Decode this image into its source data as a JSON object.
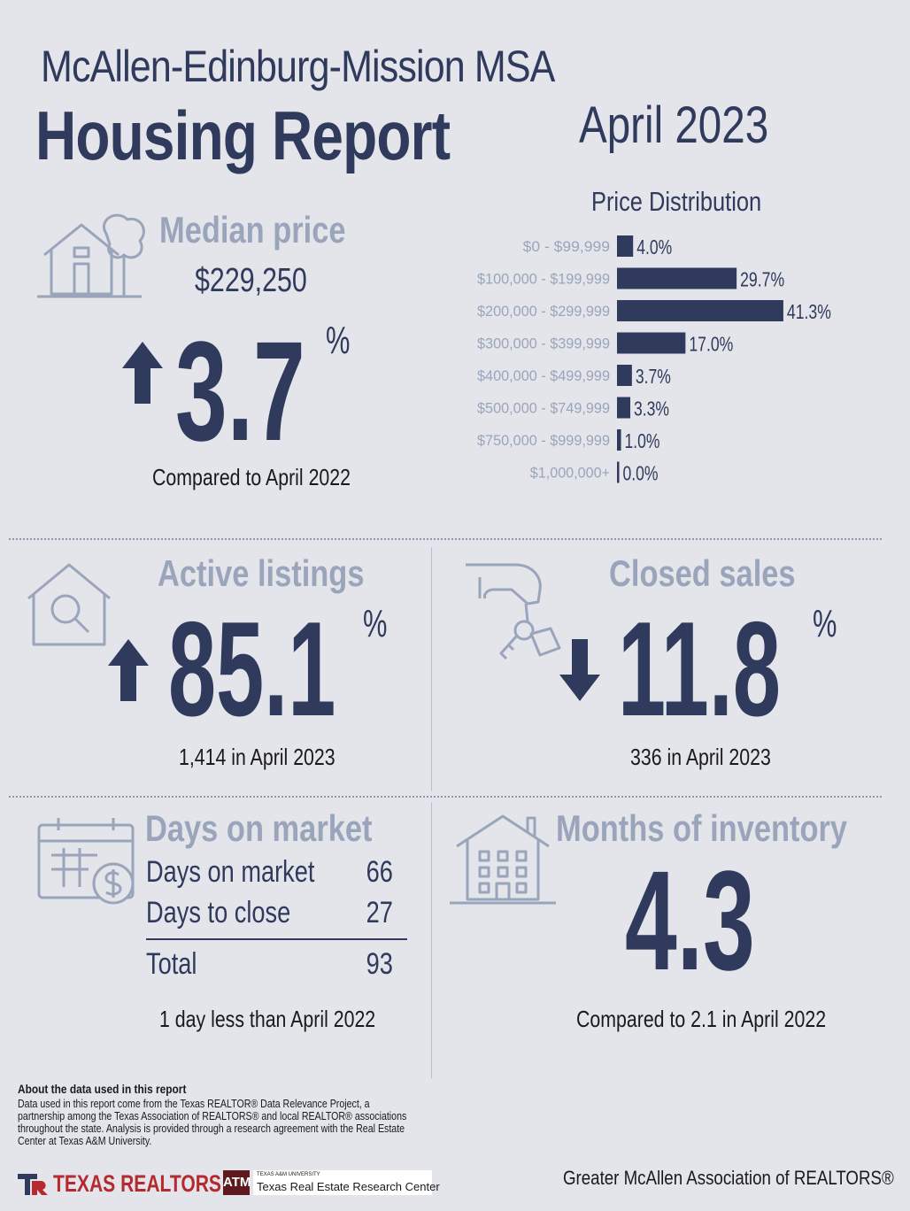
{
  "header": {
    "region": "McAllen-Edinburg-Mission MSA",
    "title": "Housing Report",
    "date": "April 2023"
  },
  "median_price": {
    "heading": "Median price",
    "value": "$229,250",
    "change": "3.7",
    "change_unit": "%",
    "direction": "up",
    "caption": "Compared to April 2022"
  },
  "price_distribution": {
    "title": "Price Distribution"
  },
  "active_listings": {
    "heading": "Active listings",
    "change": "85.1",
    "change_unit": "%",
    "direction": "up",
    "caption": "1,414 in April 2023"
  },
  "closed_sales": {
    "heading": "Closed sales",
    "change": "11.8",
    "change_unit": "%",
    "direction": "down",
    "caption": "336 in April 2023"
  },
  "days_on_market": {
    "heading": "Days on market",
    "rows": [
      {
        "label": "Days on market",
        "value": "66"
      },
      {
        "label": "Days to close",
        "value": "27"
      }
    ],
    "total_label": "Total",
    "total_value": "93",
    "caption": "1 day less than April 2022"
  },
  "months_inventory": {
    "heading": "Months of inventory",
    "value": "4.3",
    "caption": "Compared to 2.1 in April 2022"
  },
  "about": {
    "heading": "About the data used in this report",
    "body": "Data used in this report come from the Texas REALTOR® Data Relevance Project, a partnership among the Texas Association of REALTORS® and local REALTOR® associations throughout the state. Analysis is provided through a research agreement with the Real Estate Center at Texas A&M University."
  },
  "footer": {
    "logo_texas_realtors": "TEXAS REALTORS",
    "tamu_small": "TEXAS A&M UNIVERSITY",
    "tamu_center": "Texas Real Estate Research Center",
    "org": "Greater McAllen Association of REALTORS®"
  },
  "colors": {
    "background": "#e3e5ea",
    "navy": "#2f3a5c",
    "muted": "#9aa5bb",
    "brand_red": "#b42a2f"
  },
  "chart_data": {
    "type": "bar",
    "orientation": "horizontal",
    "title": "Price Distribution",
    "categories": [
      "$0 - $99,999",
      "$100,000 - $199,999",
      "$200,000 - $299,999",
      "$300,000 - $399,999",
      "$400,000 - $499,999",
      "$500,000 - $749,999",
      "$750,000 - $999,999",
      "$1,000,000+"
    ],
    "values": [
      4.0,
      29.7,
      41.3,
      17.0,
      3.7,
      3.3,
      1.0,
      0.0
    ],
    "value_labels": [
      "4.0%",
      "29.7%",
      "41.3%",
      "17.0%",
      "3.7%",
      "3.3%",
      "1.0%",
      "0.0%"
    ],
    "unit": "%",
    "grid": false,
    "legend": "none"
  }
}
